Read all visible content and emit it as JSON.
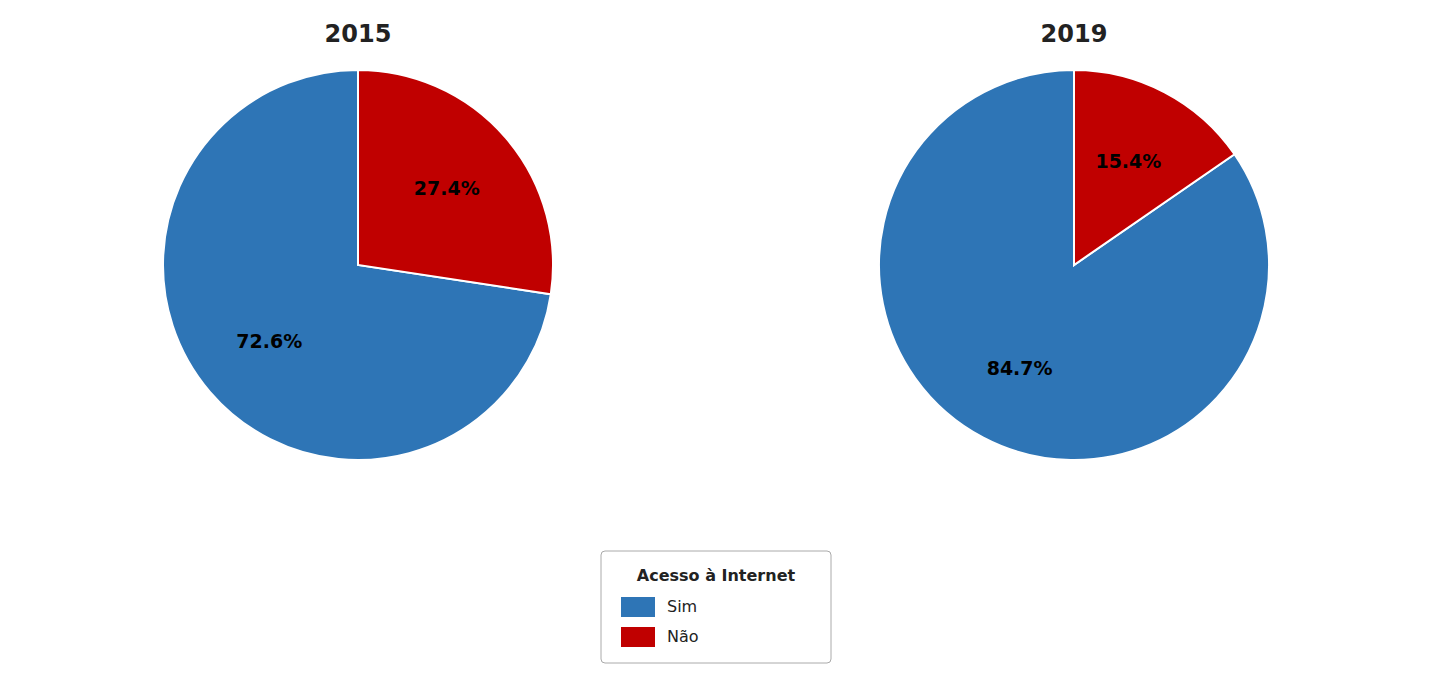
{
  "chart_data": [
    {
      "type": "pie",
      "title": "2015",
      "categories": [
        "Sim",
        "Não"
      ],
      "values": [
        72.6,
        27.4
      ],
      "value_labels": [
        "72.6%",
        "27.4%"
      ],
      "colors": [
        "#2E75B6",
        "#C00000"
      ],
      "data_labels": true,
      "legend": "bottom",
      "legend_title": "Acesso à Internet"
    },
    {
      "type": "pie",
      "title": "2019",
      "values": [
        84.7,
        15.4
      ],
      "value_labels": [
        "84.7%",
        "15.4%"
      ],
      "colors": [
        "#2E75B6",
        "#C00000"
      ],
      "data_labels": true
    }
  ]
}
